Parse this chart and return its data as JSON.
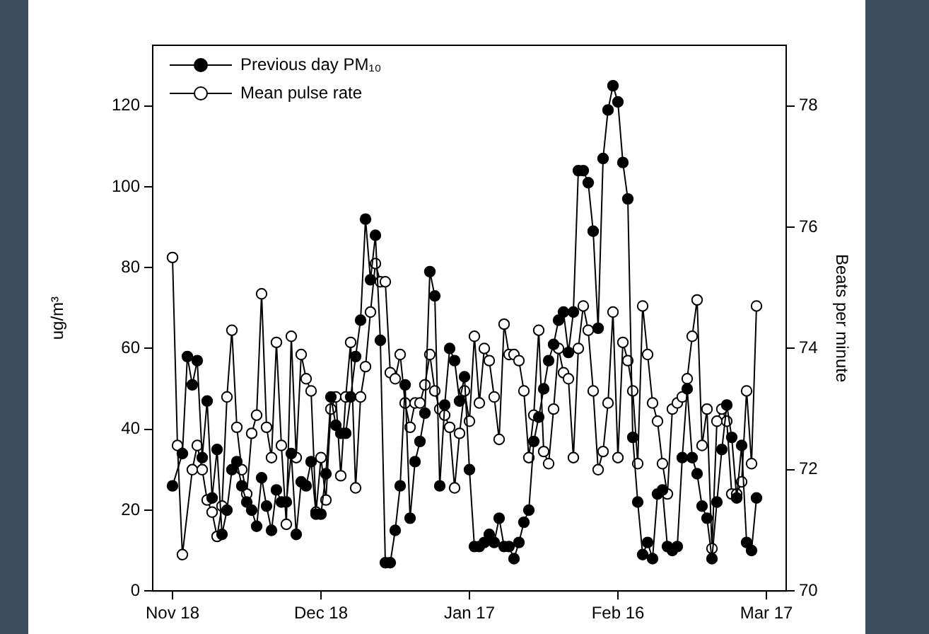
{
  "chart_data": {
    "type": "line",
    "ylabel": "ug/m³",
    "y2label": "Beats per minute",
    "categories": [
      null,
      null,
      null,
      null,
      "Nov 18",
      null,
      null,
      null,
      null,
      null,
      null,
      null,
      null,
      null,
      null,
      null,
      null,
      null,
      null,
      null,
      null,
      null,
      null,
      null,
      null,
      null,
      null,
      null,
      null,
      null,
      null,
      null,
      null,
      null,
      "Dec 18",
      null,
      null,
      null,
      null,
      null,
      null,
      null,
      null,
      null,
      null,
      null,
      null,
      null,
      null,
      null,
      null,
      null,
      null,
      null,
      null,
      null,
      null,
      null,
      null,
      null,
      null,
      null,
      null,
      null,
      "Jan 17",
      null,
      null,
      null,
      null,
      null,
      null,
      null,
      null,
      null,
      null,
      null,
      null,
      null,
      null,
      null,
      null,
      null,
      null,
      null,
      null,
      null,
      null,
      null,
      null,
      null,
      null,
      null,
      null,
      null,
      "Feb 16",
      null,
      null,
      null,
      null,
      null,
      null,
      null,
      null,
      null,
      null,
      null,
      null,
      null,
      null,
      null,
      null,
      null,
      null,
      null,
      null,
      null,
      null,
      null,
      null,
      null,
      null,
      null,
      null,
      null,
      "Mar 17",
      null,
      null,
      null,
      null
    ],
    "ylim": [
      0,
      135
    ],
    "yticks": [
      0,
      20,
      40,
      60,
      80,
      100,
      120
    ],
    "y2lim": [
      70,
      79
    ],
    "y2ticks": [
      70,
      72,
      74,
      76,
      78
    ],
    "grid": false,
    "legend": "top left",
    "marker": "circle",
    "line_style": "solid",
    "series": [
      {
        "name": "Previous day PM₁₀",
        "color": "#000000",
        "values": [
          null,
          null,
          null,
          null,
          26,
          null,
          34,
          58,
          51,
          57,
          33,
          47,
          23,
          35,
          14,
          20,
          30,
          32,
          26,
          22,
          20,
          16,
          28,
          21,
          15,
          25,
          22,
          22,
          34,
          14,
          27,
          26,
          32,
          19,
          19,
          29,
          48,
          41,
          39,
          39,
          48,
          58,
          67,
          92,
          77,
          88,
          62,
          7,
          7,
          15,
          26,
          51,
          18,
          32,
          37,
          44,
          79,
          73,
          26,
          46,
          60,
          57,
          47,
          53,
          30,
          11,
          11,
          12,
          14,
          12,
          18,
          11,
          11,
          8,
          12,
          17,
          20,
          37,
          43,
          50,
          57,
          61,
          67,
          69,
          59,
          69,
          104,
          104,
          101,
          89,
          65,
          107,
          119,
          125,
          121,
          106,
          97,
          38,
          22,
          9,
          12,
          8,
          24,
          25,
          11,
          10,
          11,
          33,
          50,
          33,
          29,
          21,
          18,
          8,
          22,
          35,
          46,
          38,
          23,
          36,
          12,
          10,
          23,
          null,
          null,
          null,
          null,
          null,
          null
        ]
      },
      {
        "name": "Mean pulse rate",
        "color": "#ffffff",
        "axis": "y2",
        "values": [
          null,
          null,
          null,
          null,
          75.5,
          72.4,
          70.6,
          null,
          72.0,
          72.4,
          72.0,
          71.5,
          71.3,
          70.9,
          71.4,
          73.2,
          74.3,
          72.7,
          72.0,
          71.6,
          72.6,
          72.9,
          74.9,
          72.7,
          72.2,
          74.1,
          72.4,
          71.1,
          74.2,
          72.2,
          73.9,
          73.5,
          73.3,
          71.3,
          72.2,
          71.5,
          73.0,
          73.2,
          71.9,
          73.2,
          74.1,
          71.7,
          73.2,
          73.7,
          74.6,
          75.4,
          75.1,
          75.1,
          73.6,
          73.5,
          73.9,
          73.1,
          72.7,
          73.1,
          73.1,
          73.4,
          73.9,
          73.3,
          73.0,
          72.9,
          72.7,
          71.7,
          72.6,
          73.3,
          72.8,
          74.2,
          73.1,
          74.0,
          73.8,
          73.2,
          72.5,
          74.4,
          73.9,
          73.9,
          73.8,
          73.3,
          72.2,
          72.9,
          74.3,
          72.3,
          72.1,
          73.0,
          74.0,
          73.6,
          73.5,
          72.2,
          74.0,
          74.7,
          74.3,
          73.3,
          72.0,
          72.3,
          73.1,
          74.6,
          72.2,
          74.1,
          73.8,
          73.3,
          72.1,
          74.7,
          73.9,
          73.1,
          72.8,
          72.1,
          71.6,
          73.0,
          73.1,
          73.2,
          73.5,
          74.2,
          74.8,
          72.4,
          73.0,
          70.7,
          72.8,
          73.0,
          72.8,
          71.6,
          71.6,
          71.8,
          73.3,
          72.1,
          74.7,
          null,
          null,
          null,
          null,
          null,
          null
        ]
      }
    ]
  }
}
